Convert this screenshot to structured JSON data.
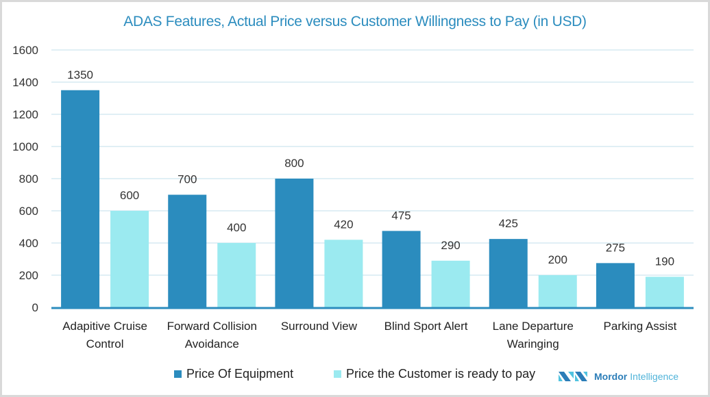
{
  "chart_data": {
    "type": "bar",
    "title": "ADAS Features, Actual Price versus Customer Willingness to Pay (in USD)",
    "xlabel": "",
    "ylabel": "",
    "ylim": [
      0,
      1600
    ],
    "yticks": [
      0,
      200,
      400,
      600,
      800,
      1000,
      1200,
      1400,
      1600
    ],
    "grid": true,
    "legend_position": "bottom",
    "categories": [
      [
        "Adapitive Cruise",
        "Control"
      ],
      [
        "Forward Collision",
        "Avoidance"
      ],
      [
        "Surround View"
      ],
      [
        "Blind Sport Alert"
      ],
      [
        "Lane Departure",
        "Waringing"
      ],
      [
        "Parking Assist"
      ]
    ],
    "series": [
      {
        "name": "Price Of Equipment",
        "color": "#2b8cbe",
        "values": [
          1350,
          700,
          800,
          475,
          425,
          275
        ]
      },
      {
        "name": "Price the Customer is ready to pay",
        "color": "#9beaf0",
        "values": [
          600,
          400,
          420,
          290,
          200,
          190
        ]
      }
    ]
  },
  "branding": {
    "name_part1": "Mordor",
    "name_part2": "Intelligence"
  },
  "colors": {
    "title": "#2b8cbe",
    "grid": "#d5eaf2",
    "axis": "#2b8cbe"
  }
}
